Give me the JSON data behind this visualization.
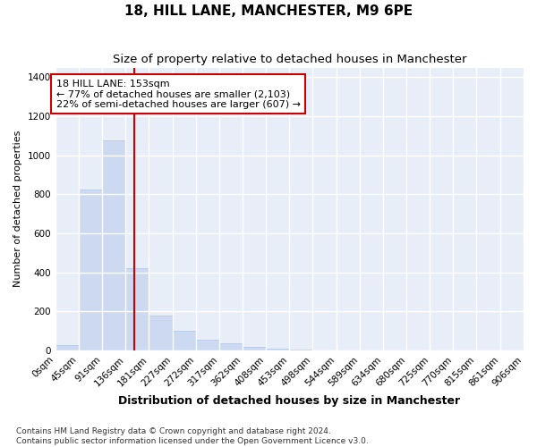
{
  "title": "18, HILL LANE, MANCHESTER, M9 6PE",
  "subtitle": "Size of property relative to detached houses in Manchester",
  "xlabel": "Distribution of detached houses by size in Manchester",
  "ylabel": "Number of detached properties",
  "bar_color": "#ccd9f0",
  "bar_edge_color": "#b0c4e8",
  "plot_bg_color": "#e8eef8",
  "fig_bg_color": "#ffffff",
  "grid_color": "#ffffff",
  "vline_x": 153,
  "vline_color": "#cc0000",
  "annotation_title": "18 HILL LANE: 153sqm",
  "annotation_line1": "← 77% of detached houses are smaller (2,103)",
  "annotation_line2": "22% of semi-detached houses are larger (607) →",
  "annotation_box_color": "#ffffff",
  "annotation_box_edge": "#cc0000",
  "bin_edges": [
    0,
    45,
    91,
    136,
    181,
    227,
    272,
    317,
    362,
    408,
    453,
    498,
    544,
    589,
    634,
    680,
    725,
    770,
    815,
    861,
    906
  ],
  "bin_counts": [
    25,
    825,
    1075,
    420,
    180,
    100,
    55,
    38,
    20,
    10,
    5,
    2,
    1,
    0,
    0,
    0,
    0,
    0,
    0,
    0
  ],
  "ylim": [
    0,
    1450
  ],
  "yticks": [
    0,
    200,
    400,
    600,
    800,
    1000,
    1200,
    1400
  ],
  "footer": "Contains HM Land Registry data © Crown copyright and database right 2024.\nContains public sector information licensed under the Open Government Licence v3.0.",
  "title_fontsize": 11,
  "subtitle_fontsize": 9.5,
  "tick_label_fontsize": 7.5,
  "ylabel_fontsize": 8,
  "xlabel_fontsize": 9,
  "annot_fontsize": 8,
  "footer_fontsize": 6.5
}
